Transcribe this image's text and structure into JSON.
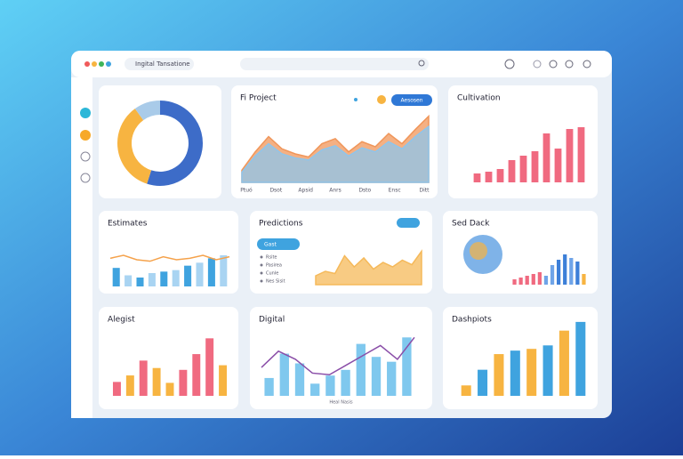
{
  "header": {
    "tab": "Ingital Tansatione"
  },
  "panels": [
    {
      "chart": {
        "type": "donut",
        "values": [
          55,
          35,
          10
        ],
        "colors": [
          "#3d6cc8",
          "#f7b441",
          "#a9cbe9"
        ]
      }
    },
    {
      "title": "Fi Project",
      "legend_button": "Aesosen",
      "chart": {
        "type": "area",
        "ylim": [
          0,
          70
        ],
        "axis_labels": [
          "Ptuó",
          "Dsot",
          "Apsid",
          "Anrs",
          "Dsto",
          "Ensc",
          "Ditt"
        ],
        "series": [
          {
            "color": "#f0965a",
            "values": [
              12,
              30,
              45,
              33,
              28,
              25,
              38,
              43,
              30,
              40,
              35,
              48,
              38,
              52,
              65
            ]
          },
          {
            "color": "#8ec5ec",
            "values": [
              10,
              26,
              38,
              28,
              24,
              22,
              32,
              36,
              26,
              34,
              30,
              40,
              33,
              45,
              55
            ]
          }
        ]
      }
    },
    {
      "title": "Cultivation",
      "chart": {
        "type": "bar",
        "ylim": [
          0,
          80
        ],
        "colors": [
          "#f06a80"
        ],
        "values": [
          10,
          12,
          15,
          25,
          30,
          35,
          55,
          38,
          60,
          62
        ]
      }
    },
    {
      "title": "Estimates",
      "chart": {
        "type": "combo",
        "ylim": [
          0,
          60
        ],
        "colors": [
          "#3fa3df",
          "#a9d4f2"
        ],
        "values": [
          25,
          15,
          12,
          18,
          20,
          22,
          28,
          32,
          38,
          42
        ],
        "series": [
          {
            "color": "#f5a24b",
            "values": [
              38,
              42,
              36,
              34,
              40,
              36,
              38,
              42,
              36,
              40
            ]
          }
        ]
      }
    },
    {
      "title": "Predictions",
      "button": "Gast",
      "items": [
        "Rsite",
        "Pasirea",
        "Cunle",
        "Nes Sisit"
      ],
      "chart": {
        "type": "area",
        "ylim": [
          0,
          40
        ],
        "series": [
          {
            "color": "#f5b95a",
            "values": [
              8,
              12,
              10,
              26,
              16,
              24,
              14,
              20,
              16,
              22,
              18,
              30
            ]
          }
        ]
      }
    },
    {
      "title": "Sed Dack",
      "chart": {
        "type": "bar",
        "ylim": [
          0,
          40
        ],
        "colors": [
          "#f06a80",
          "#f06a80",
          "#f06a80",
          "#f06a80",
          "#f06a80",
          "#6fa4e8",
          "#6fa4e8",
          "#3d7fd8",
          "#3d7fd8",
          "#6fa4e8",
          "#3d7fd8",
          "#f7b441"
        ],
        "values": [
          6,
          8,
          10,
          12,
          14,
          10,
          22,
          28,
          34,
          30,
          26,
          12
        ]
      }
    },
    {
      "title": "Alegist",
      "chart": {
        "type": "bar",
        "ylim": [
          0,
          70
        ],
        "colors": [
          "#f06a80",
          "#f7b441",
          "#f06a80",
          "#f7b441",
          "#f7b441",
          "#f06a80",
          "#f06a80",
          "#f06a80",
          "#f7b441"
        ],
        "values": [
          15,
          22,
          38,
          30,
          14,
          28,
          45,
          62,
          33
        ]
      }
    },
    {
      "title": "Digital",
      "x_label": "Heal Nasis",
      "chart": {
        "type": "combo",
        "ylim": [
          0,
          80
        ],
        "colors": [
          "#7fc8ee"
        ],
        "values": [
          22,
          52,
          40,
          15,
          25,
          32,
          64,
          48,
          42,
          72
        ],
        "series": [
          {
            "color": "#8a4ea8",
            "values": [
              35,
              55,
              45,
              28,
              26,
              38,
              50,
              62,
              45,
              72
            ]
          }
        ]
      }
    },
    {
      "title": "Dashpiots",
      "chart": {
        "type": "bar",
        "ylim": [
          0,
          90
        ],
        "colors": [
          "#f7b441",
          "#3fa3df"
        ],
        "values": [
          12,
          30,
          48,
          52,
          54,
          58,
          75,
          85
        ]
      }
    }
  ]
}
